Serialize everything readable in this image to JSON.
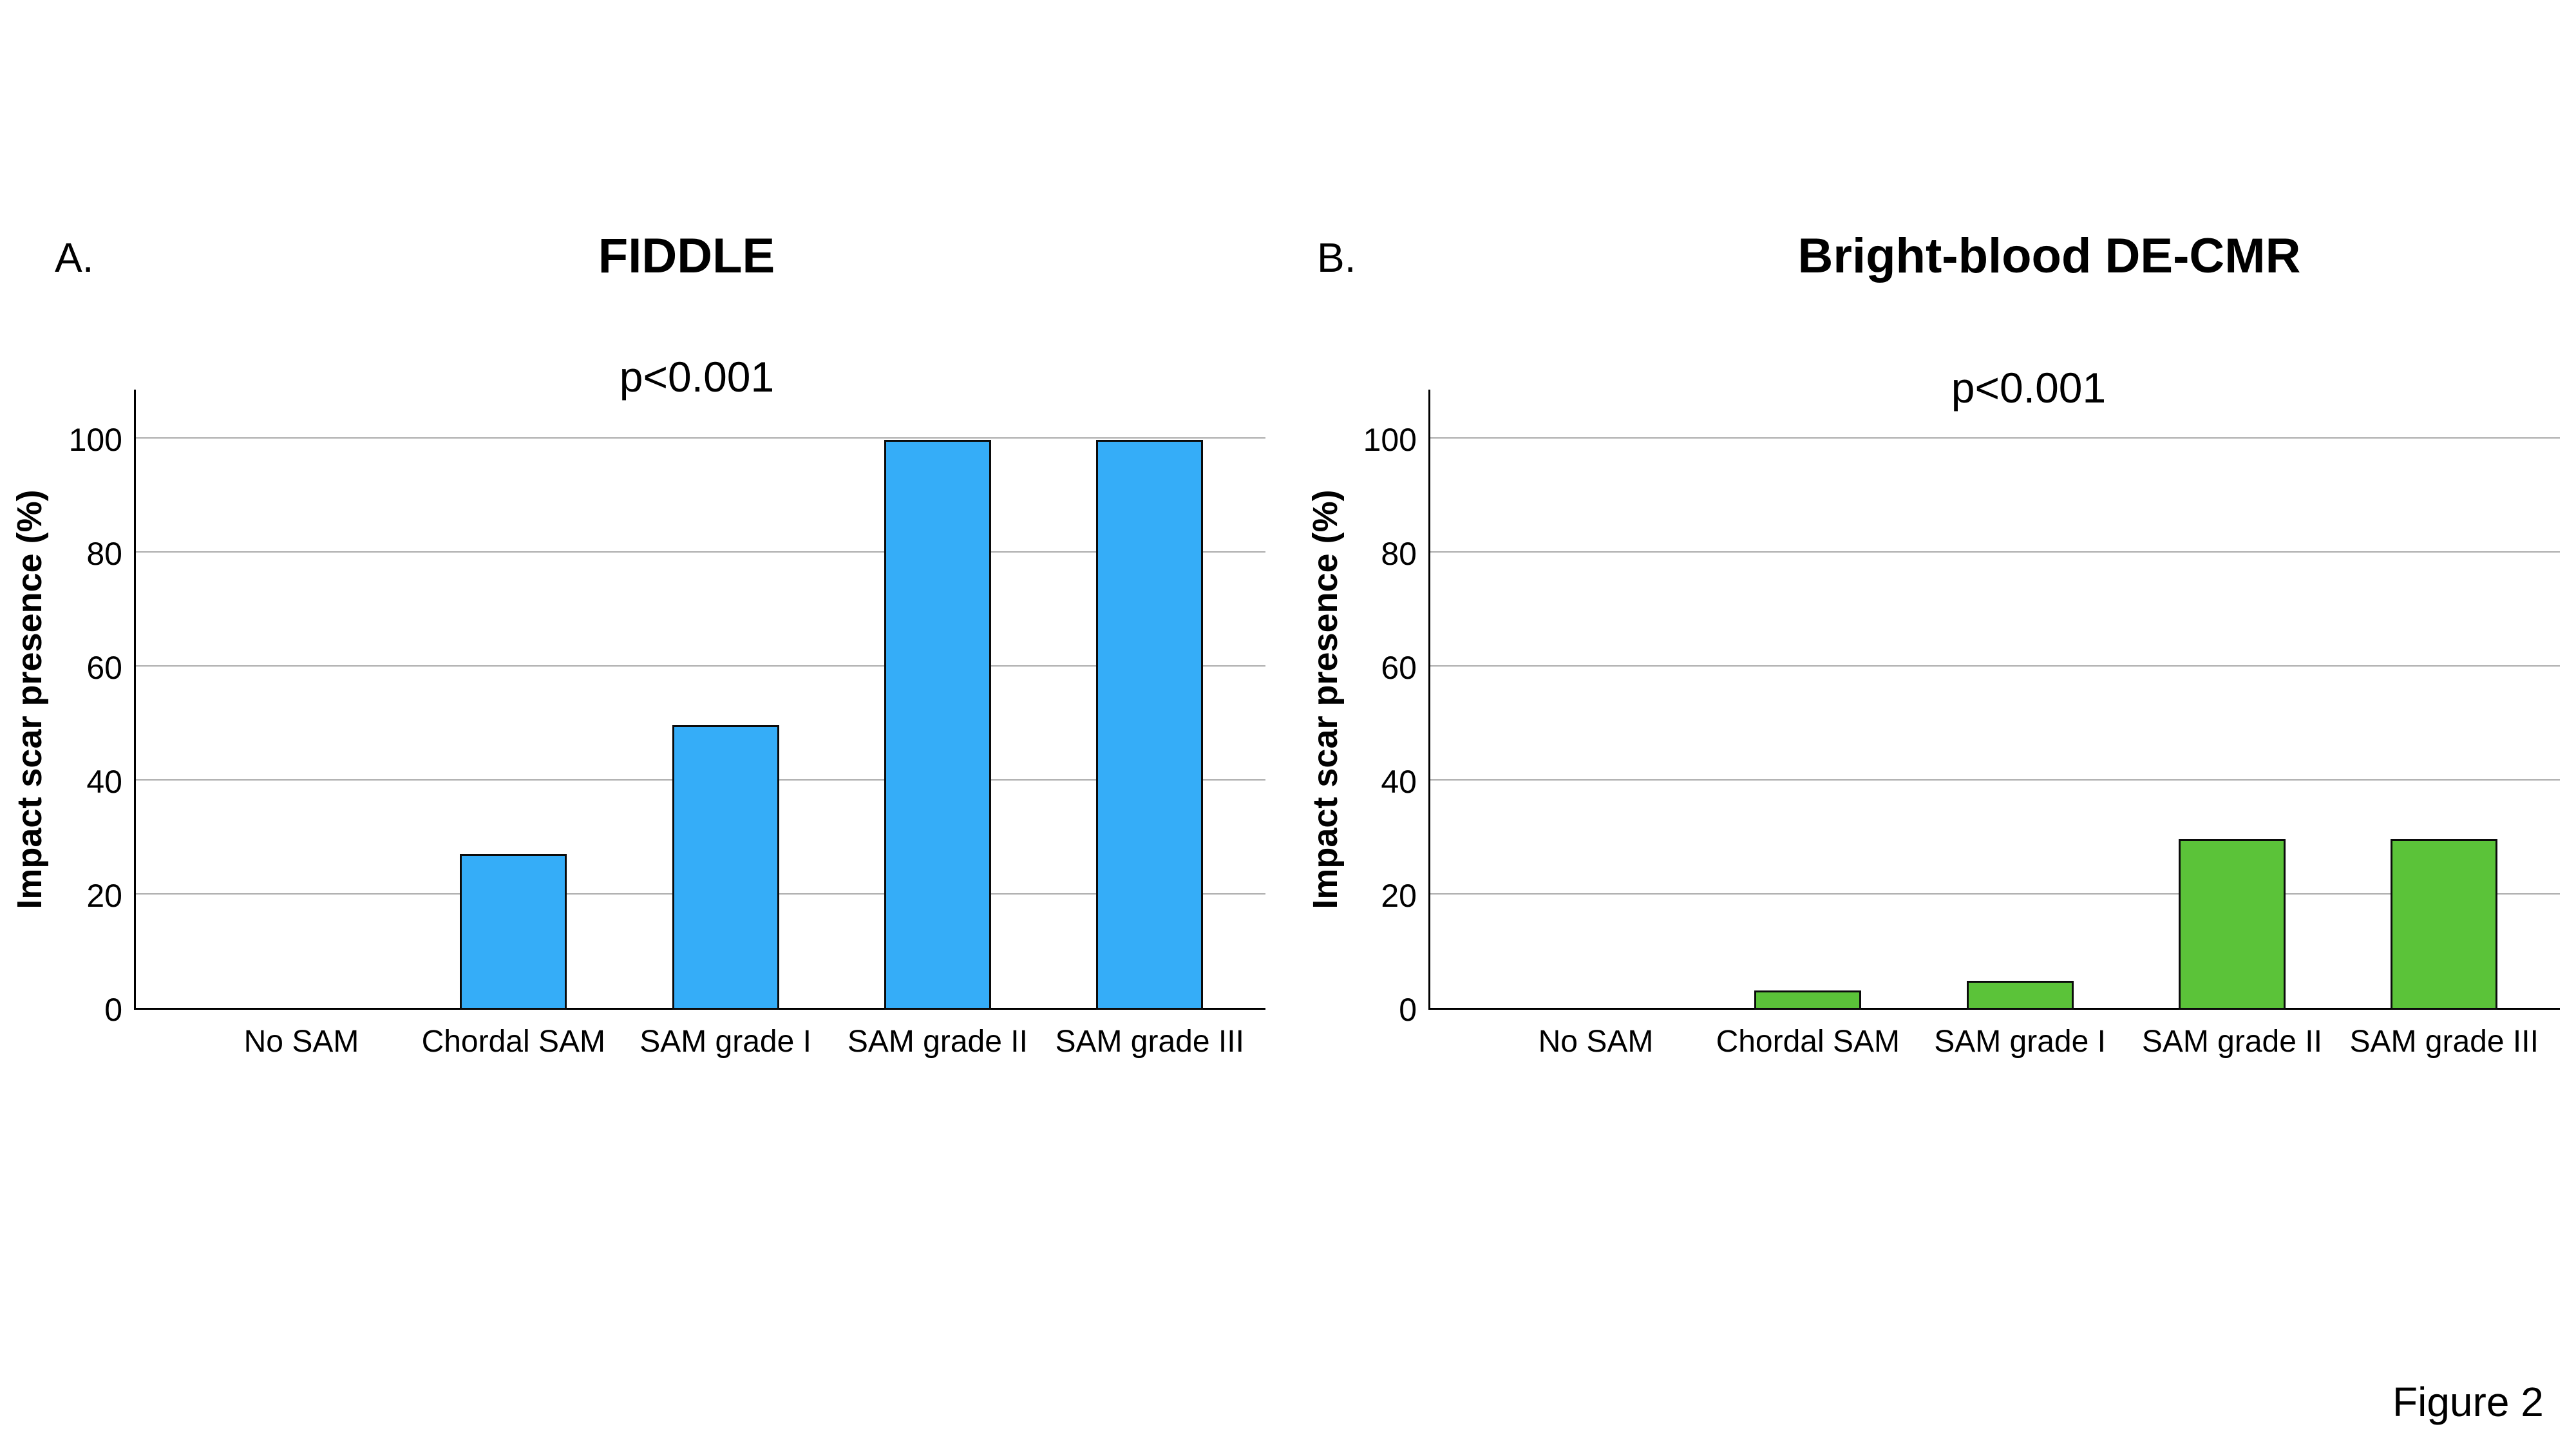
{
  "figure": {
    "caption": "Figure 2",
    "panel_a": {
      "label": "A.",
      "title": "FIDDLE",
      "p_value": "p<0.001"
    },
    "panel_b": {
      "label": "B.",
      "title": "Bright-blood DE-CMR",
      "p_value": "p<0.001"
    }
  },
  "colors": {
    "background": "#ffffff",
    "gridline": "#ababab",
    "axis": "#000000",
    "text": "#000000",
    "panel_a_bar": "#35ADF8",
    "panel_b_bar": "#5BC339",
    "bar_border": "#0b0b0b"
  },
  "chart_data": [
    {
      "id": "panel-a",
      "type": "bar",
      "title": "FIDDLE",
      "annotation": "p<0.001",
      "categories": [
        "No SAM",
        "Chordal SAM",
        "SAM grade I",
        "SAM grade II",
        "SAM grade III"
      ],
      "values": [
        0,
        27.3,
        50,
        100,
        100
      ],
      "xlabel": "",
      "ylabel": "Impact scar presence (%)",
      "ylim": [
        0,
        110
      ],
      "yticks": [
        0,
        20,
        40,
        60,
        80,
        100
      ],
      "grid": true,
      "legend": "none",
      "bar_color": "#35ADF8"
    },
    {
      "id": "panel-b",
      "type": "bar",
      "title": "Bright-blood DE-CMR",
      "annotation": "p<0.001",
      "categories": [
        "No SAM",
        "Chordal SAM",
        "SAM grade I",
        "SAM grade II",
        "SAM grade III"
      ],
      "values": [
        0,
        3.4,
        5.1,
        30,
        30
      ],
      "xlabel": "",
      "ylabel": "Impact scar presence (%)",
      "ylim": [
        0,
        110
      ],
      "yticks": [
        0,
        20,
        40,
        60,
        80,
        100
      ],
      "grid": true,
      "legend": "none",
      "bar_color": "#5BC339"
    }
  ]
}
